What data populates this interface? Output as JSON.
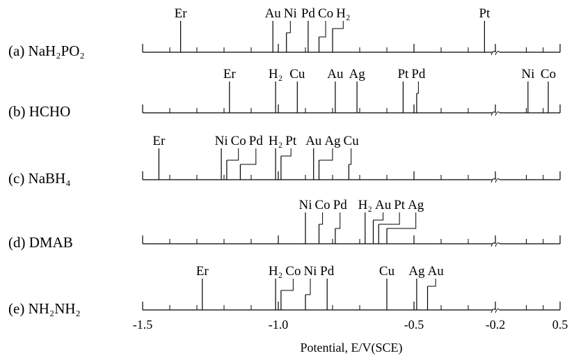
{
  "chart_data": [
    {
      "type": "numberline",
      "label": "(a)  NaH₂PO₂",
      "categories": [
        "Er",
        "Au",
        "Ni",
        "Pd",
        "Co",
        "H₂",
        "Pt"
      ],
      "values": [
        -1.36,
        -1.02,
        -0.97,
        -0.89,
        -0.85,
        -0.8,
        -0.24
      ]
    },
    {
      "type": "numberline",
      "label": "(b)  HCHO",
      "categories": [
        "Er",
        "H₂",
        "Cu",
        "Au",
        "Ag",
        "Pt",
        "Pd",
        "Ni",
        "Co"
      ],
      "values": [
        -1.18,
        -1.01,
        -0.93,
        -0.79,
        -0.71,
        -0.54,
        -0.49,
        0.12,
        0.36
      ]
    },
    {
      "type": "numberline",
      "label": "(c)  NaBH₄",
      "categories": [
        "Er",
        "Ni",
        "Co",
        "Pd",
        "H₂",
        "Pt",
        "Au",
        "Ag",
        "Cu"
      ],
      "values": [
        -1.44,
        -1.21,
        -1.19,
        -1.14,
        -1.01,
        -0.99,
        -0.87,
        -0.85,
        -0.74
      ]
    },
    {
      "type": "numberline",
      "label": "(d)  DMAB",
      "categories": [
        "Ni",
        "Co",
        "Pd",
        "H₂",
        "Au",
        "Pt",
        "Ag"
      ],
      "values": [
        -0.9,
        -0.85,
        -0.79,
        -0.68,
        -0.65,
        -0.63,
        -0.6
      ]
    },
    {
      "type": "numberline",
      "label": "(e)  NH₂NH₂",
      "categories": [
        "Er",
        "H₂",
        "Co",
        "Ni",
        "Pd",
        "Cu",
        "Ag",
        "Au"
      ],
      "values": [
        -1.28,
        -1.01,
        -0.99,
        -0.9,
        -0.82,
        -0.6,
        -0.49,
        -0.45
      ]
    }
  ],
  "axis": {
    "xlim": [
      -1.5,
      0.5
    ],
    "xticks": [
      -1.5,
      {
        "value": -1,
        "label": "-1.0"
      },
      -0.5,
      -0.2,
      0.5
    ],
    "minor_xticks": [
      -1.4,
      -1.3,
      -1.2,
      -1.1,
      -0.9,
      -0.8,
      -0.7,
      -0.6,
      -0.4,
      -0.3,
      0.1,
      0.3
    ],
    "break_at": -0.2,
    "xlabel": "Potential, E/V(SCE)",
    "color": "#000000"
  }
}
